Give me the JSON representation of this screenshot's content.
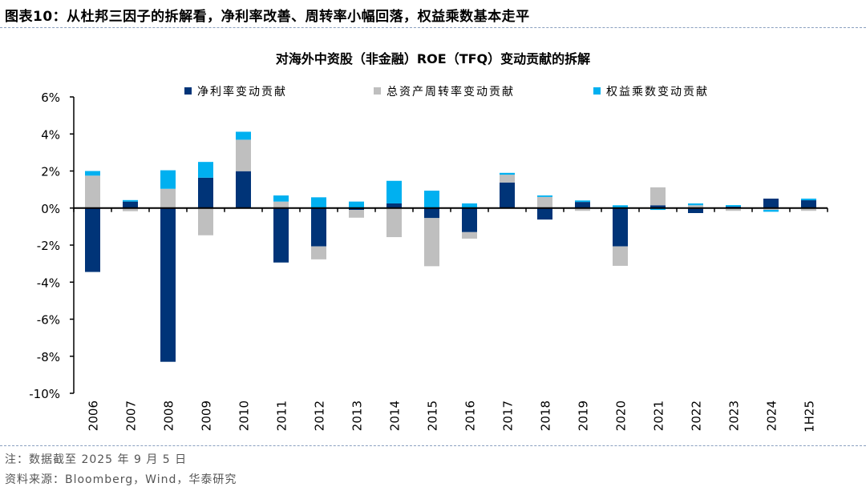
{
  "figure_title": "图表10：从杜邦三因子的拆解看，净利率改善、周转率小幅回落，权益乘数基本走平",
  "notes": [
    "注：数据截至 2025 年 9 月 5 日",
    "资料来源：Bloomberg，Wind，华泰研究"
  ],
  "chart_data": {
    "type": "bar",
    "stacked": true,
    "title": "对海外中资股（非金融）ROE（TFQ）变动贡献的拆解",
    "xlabel": "",
    "ylabel": "",
    "ylim": [
      -10,
      6
    ],
    "yticks": [
      6,
      4,
      2,
      0,
      -2,
      -4,
      -6,
      -8,
      -10
    ],
    "ytick_format": "%",
    "grid": false,
    "legend_position": "top",
    "categories": [
      "2006",
      "2007",
      "2008",
      "2009",
      "2010",
      "2011",
      "2012",
      "2013",
      "2014",
      "2015",
      "2016",
      "2017",
      "2018",
      "2019",
      "2020",
      "2021",
      "2022",
      "2023",
      "2024",
      "1H25"
    ],
    "series": [
      {
        "name": "净利率变动贡献",
        "color": "#003478",
        "values": [
          -3.45,
          0.35,
          -8.3,
          1.64,
          1.99,
          -2.94,
          -2.07,
          -0.1,
          0.25,
          -0.54,
          -1.3,
          1.38,
          -0.62,
          0.33,
          -2.07,
          0.15,
          -0.27,
          0.08,
          0.51,
          0.42
        ]
      },
      {
        "name": "总资产周转率变动贡献",
        "color": "#bfbfbf",
        "values": [
          1.75,
          -0.17,
          1.04,
          -1.47,
          1.7,
          0.35,
          -0.7,
          -0.42,
          -1.57,
          -2.6,
          -0.35,
          0.42,
          0.6,
          -0.15,
          -1.05,
          0.97,
          0.15,
          -0.15,
          -0.1,
          -0.15
        ]
      },
      {
        "name": "权益乘数变动贡献",
        "color": "#00b0f0",
        "values": [
          0.25,
          0.08,
          1.0,
          0.85,
          0.43,
          0.33,
          0.58,
          0.35,
          1.22,
          0.94,
          0.25,
          0.1,
          0.08,
          0.08,
          0.15,
          -0.1,
          0.1,
          0.08,
          -0.1,
          0.09
        ]
      }
    ]
  }
}
